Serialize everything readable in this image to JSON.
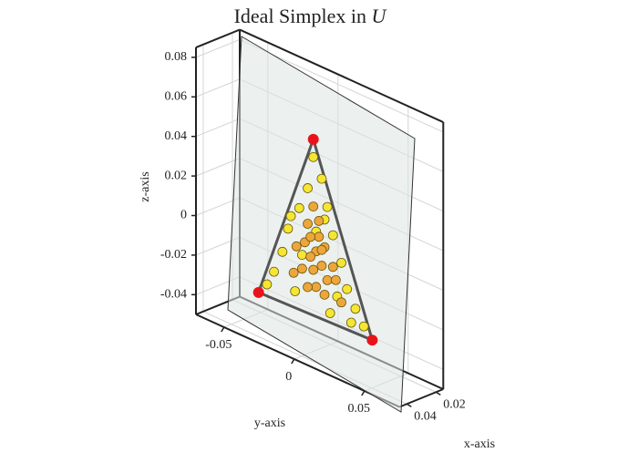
{
  "chart_data": {
    "type": "scatter3d",
    "title": "Ideal Simplex in",
    "title_math": "U",
    "x_label": "x-axis",
    "y_label": "y-axis",
    "z_label": "z-axis",
    "xlim": [
      0.015,
      0.045
    ],
    "ylim": [
      -0.07,
      0.075
    ],
    "zlim": [
      -0.05,
      0.085
    ],
    "xticks": [
      0.02,
      0.04
    ],
    "yticks": [
      -0.05,
      0,
      0.05
    ],
    "zticks": [
      -0.04,
      -0.02,
      0,
      0.02,
      0.04,
      0.06,
      0.08
    ],
    "grid": true,
    "series": [
      {
        "color": "#f4e632",
        "x": [
          0.03,
          0.03,
          0.03,
          0.03,
          0.03,
          0.03,
          0.03,
          0.03,
          0.03,
          0.03,
          0.03,
          0.03,
          0.03,
          0.03,
          0.03,
          0.03,
          0.03,
          0.03,
          0.03,
          0.03,
          0.03,
          0.03
        ],
        "y": [
          -0.002,
          0.004,
          -0.006,
          0.008,
          -0.012,
          0.012,
          -0.02,
          0.018,
          -0.024,
          0.022,
          -0.03,
          0.028,
          -0.035,
          0.034,
          -0.015,
          0.01,
          0,
          -0.01,
          0.015,
          0.025,
          -0.018,
          0.006
        ],
        "z": [
          0.047,
          0.038,
          0.03,
          0.025,
          0.018,
          0.012,
          0.005,
          0,
          -0.008,
          -0.012,
          -0.02,
          -0.02,
          -0.028,
          -0.027,
          -0.025,
          -0.028,
          0.01,
          -0.005,
          -0.018,
          -0.028,
          0.012,
          0.018
        ]
      },
      {
        "color": "#eea63a",
        "x": [
          0.03,
          0.03,
          0.03,
          0.03,
          0.03,
          0.03,
          0.03,
          0.03,
          0.03,
          0.03,
          0.03,
          0.03,
          0.03,
          0.03,
          0.03,
          0.03,
          0.03,
          0.03,
          0.03,
          0.03,
          0.03,
          0.03
        ],
        "y": [
          0,
          -0.004,
          0.004,
          -0.008,
          0.006,
          -0.002,
          0.008,
          -0.01,
          0.002,
          -0.006,
          0.012,
          -0.014,
          0,
          -0.006,
          0.006,
          0.002,
          -0.002,
          0.014,
          -0.016,
          0.018,
          0.004,
          -0.004
        ],
        "z": [
          0,
          -0.004,
          -0.006,
          0.002,
          0.004,
          -0.01,
          -0.012,
          -0.012,
          0.008,
          0.012,
          -0.004,
          -0.002,
          -0.018,
          -0.02,
          -0.02,
          0.016,
          0.022,
          -0.01,
          -0.016,
          -0.02,
          0.002,
          0.006
        ]
      }
    ],
    "vertices": {
      "color": "#e8141a",
      "x": [
        0.03,
        0.03,
        0.03
      ],
      "y": [
        -0.002,
        -0.041,
        0.04
      ],
      "z": [
        0.056,
        -0.034,
        -0.032
      ]
    },
    "edge_color": "#555555"
  }
}
